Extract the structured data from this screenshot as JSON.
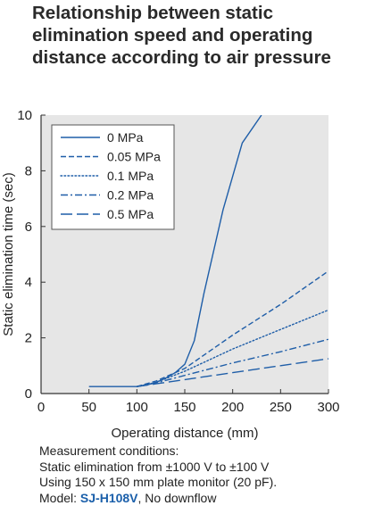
{
  "header": {
    "title_lines": [
      "Relationship between static",
      "elimination speed and operating",
      "distance according to air pressure"
    ]
  },
  "chart_data": {
    "type": "line",
    "xlabel": "Operating distance (mm)",
    "ylabel": "Static elimination time (sec)",
    "xlim": [
      0,
      300
    ],
    "ylim": [
      0,
      10
    ],
    "xticks": [
      0,
      50,
      100,
      150,
      200,
      250,
      300
    ],
    "yticks": [
      0,
      2,
      4,
      6,
      8,
      10
    ],
    "grid": false,
    "legend_position": "top-left",
    "plot_background": "#e6e6e6",
    "line_color": "#1f5ea8",
    "series": [
      {
        "name": "0 MPa",
        "style": "solid",
        "x": [
          50,
          100,
          110,
          120,
          130,
          140,
          150,
          160,
          170,
          190,
          210,
          230
        ],
        "y": [
          0.25,
          0.25,
          0.3,
          0.4,
          0.55,
          0.75,
          1.05,
          1.9,
          3.6,
          6.6,
          9.0,
          10.0
        ]
      },
      {
        "name": "0.05 MPa",
        "style": "dashed",
        "x": [
          100,
          120,
          150,
          200,
          250,
          300
        ],
        "y": [
          0.25,
          0.45,
          0.9,
          2.1,
          3.2,
          4.4
        ]
      },
      {
        "name": "0.1 MPa",
        "style": "dotted",
        "x": [
          100,
          120,
          150,
          200,
          250,
          300
        ],
        "y": [
          0.25,
          0.4,
          0.8,
          1.6,
          2.3,
          3.0
        ]
      },
      {
        "name": "0.2 MPa",
        "style": "dashdot",
        "x": [
          100,
          120,
          150,
          200,
          250,
          300
        ],
        "y": [
          0.25,
          0.38,
          0.65,
          1.1,
          1.5,
          1.95
        ]
      },
      {
        "name": "0.5 MPa",
        "style": "longdash",
        "x": [
          100,
          120,
          150,
          200,
          250,
          300
        ],
        "y": [
          0.25,
          0.35,
          0.5,
          0.75,
          1.0,
          1.25
        ]
      }
    ]
  },
  "notes": {
    "line1": "Measurement conditions:",
    "line2": "Static elimination from ±1000 V to ±100 V",
    "line3": "Using 150 x 150 mm plate monitor (20 pF).",
    "model_label": "Model: ",
    "model_name": "SJ-H108V",
    "model_suffix": ", No downflow"
  }
}
